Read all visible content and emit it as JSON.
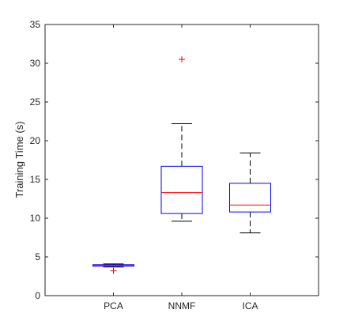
{
  "chart_data": {
    "type": "boxplot",
    "title": "",
    "xlabel": "",
    "ylabel": "Training Time (s)",
    "ylim": [
      0,
      35
    ],
    "yticks": [
      0,
      5,
      10,
      15,
      20,
      25,
      30,
      35
    ],
    "grid": false,
    "categories": [
      "PCA",
      "NNMF",
      "ICA"
    ],
    "boxes": [
      {
        "category": "PCA",
        "whisker_low": 3.7,
        "q1": 3.8,
        "median": 3.9,
        "q3": 4.0,
        "whisker_high": 4.1,
        "outliers": [
          3.2
        ]
      },
      {
        "category": "NNMF",
        "whisker_low": 9.6,
        "q1": 10.6,
        "median": 13.3,
        "q3": 16.7,
        "whisker_high": 22.2,
        "outliers": [
          30.5
        ]
      },
      {
        "category": "ICA",
        "whisker_low": 8.1,
        "q1": 10.8,
        "median": 11.7,
        "q3": 14.5,
        "whisker_high": 18.4,
        "outliers": []
      }
    ],
    "colors": {
      "box": "#0000ff",
      "median": "#ff0000",
      "whisker": "#000000",
      "outlier": "#ff0000",
      "axes": "#262626"
    }
  }
}
